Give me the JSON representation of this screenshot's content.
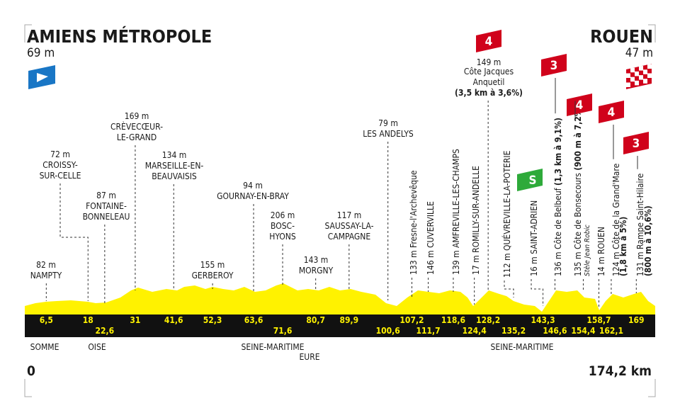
{
  "start": {
    "name": "AMIENS MÉTROPOLE",
    "altitude": "69 m",
    "km": "0"
  },
  "finish": {
    "name": "ROUEN",
    "altitude": "47 m",
    "km": "174,2 km"
  },
  "waypoints": [
    {
      "km": "6,5",
      "altitude": "82 m",
      "name": [
        "NAMPTY"
      ]
    },
    {
      "km": "18",
      "altitude": "72 m",
      "name": [
        "CROISSY-",
        "SUR-CELLE"
      ]
    },
    {
      "km": "22,6",
      "altitude": "87 m",
      "name": [
        "FONTAINE-",
        "BONNELEAU"
      ]
    },
    {
      "km": "31",
      "altitude": "169 m",
      "name": [
        "CRÈVECŒUR-",
        "LE-GRAND"
      ]
    },
    {
      "km": "41,6",
      "altitude": "134 m",
      "name": [
        "MARSEILLE-EN-",
        "BEAUVAISIS"
      ]
    },
    {
      "km": "52,3",
      "altitude": "155 m",
      "name": [
        "GERBEROY"
      ]
    },
    {
      "km": "63,6",
      "altitude": "94 m",
      "name": [
        "GOURNAY-EN-BRAY"
      ]
    },
    {
      "km": "71,6",
      "altitude": "206 m",
      "name": [
        "BOSC-",
        "HYONS"
      ]
    },
    {
      "km": "80,7",
      "altitude": "143 m",
      "name": [
        "MORGNY"
      ]
    },
    {
      "km": "89,9",
      "altitude": "117 m",
      "name": [
        "SAUSSAY-LA-",
        "CAMPAGNE"
      ]
    },
    {
      "km": "100,6",
      "altitude": "79 m",
      "name": [
        "LES ANDELYS"
      ]
    },
    {
      "km": "107,2",
      "altitude": "133 m",
      "name": [
        "Fresne-l'Archevêque"
      ]
    },
    {
      "km": "111,7",
      "altitude": "146 m",
      "name": [
        "CUVERVILLE"
      ]
    },
    {
      "km": "118,6",
      "altitude": "139 m",
      "name": [
        "AMFREVILLE-LES-CHAMPS"
      ]
    },
    {
      "km": "124,4",
      "altitude": "17 m",
      "name": [
        "ROMILLY-SUR-ANDELLE"
      ]
    },
    {
      "km": "128,2",
      "altitude": "149 m",
      "name": [
        "Côte Jacques",
        "Anquetil"
      ],
      "detail": "(3,5 km à 3,6%)",
      "category": "4"
    },
    {
      "km": "135,2",
      "altitude": "112 m",
      "name": [
        "QUÉVREVILLE-LA-POTERIE"
      ]
    },
    {
      "km": "143,3",
      "altitude": "16 m",
      "name": [
        "SAINT-ADRIEN"
      ],
      "sprint": "S"
    },
    {
      "km": "146,6",
      "altitude": "136 m",
      "name": [
        "Côte de Belbeuf"
      ],
      "detail": "(1,3 km à 9,1%)",
      "category": "3"
    },
    {
      "km": "154,4",
      "altitude": "135 m",
      "name": [
        "Côte de Bonsecours"
      ],
      "detail": "(900 m à 7,2%)",
      "note": "Stèle Jean Robic",
      "category": "4"
    },
    {
      "km": "158,7",
      "altitude": "14 m",
      "name": [
        "ROUEN"
      ]
    },
    {
      "km": "162,1",
      "altitude": "124 m",
      "name": [
        "Côte de la Grand'Mare"
      ],
      "detail": "(1,8 km à 5%)",
      "category": "4"
    },
    {
      "km": "169",
      "altitude": "131 m",
      "name": [
        "Rampe Saint-Hilaire"
      ],
      "detail": "(800 m à 10,6%)",
      "category": "3"
    }
  ],
  "regions": [
    "SOMME",
    "OISE",
    "SEINE-MARITIME",
    "EURE",
    "SEINE-MARITIME"
  ]
}
